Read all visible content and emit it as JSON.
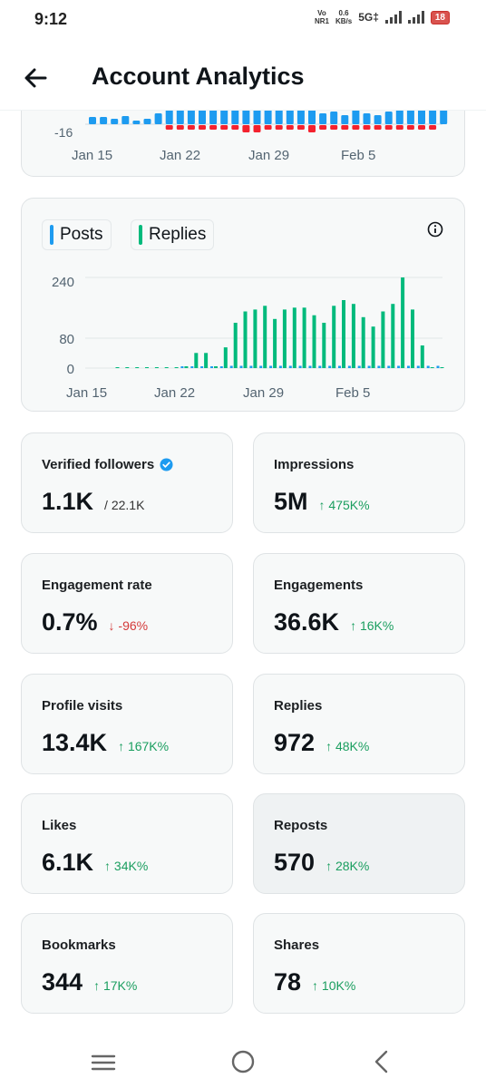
{
  "status_bar": {
    "time": "9:12",
    "volte": "Vo",
    "volte_sub": "NR1",
    "speed_value": "0.6",
    "speed_unit": "KB/s",
    "network": "5G‡",
    "battery": "18"
  },
  "header": {
    "title": "Account Analytics",
    "back_icon": "arrow-left-icon"
  },
  "top_chart": {
    "y_tick": "-16",
    "x_ticks": [
      "Jan 15",
      "Jan 22",
      "Jan 29",
      "Feb 5"
    ],
    "colors": {
      "blue": "#1d9bf0",
      "red": "#f4212e"
    }
  },
  "posts_replies_chart": {
    "legend": {
      "posts": "Posts",
      "replies": "Replies"
    },
    "colors": {
      "posts": "#1d9bf0",
      "replies": "#00ba7c"
    },
    "info_icon": "info-icon",
    "chart_data": {
      "type": "bar",
      "y_ticks": [
        "240",
        "80",
        "0"
      ],
      "x_ticks": [
        "Jan 15",
        "Jan 22",
        "Jan 29",
        "Feb 5"
      ],
      "ylim": [
        0,
        260
      ],
      "series": [
        {
          "name": "Posts",
          "values": [
            0,
            0,
            0,
            0,
            0,
            0,
            0,
            4,
            4,
            4,
            4,
            4,
            6,
            6,
            6,
            6,
            6,
            6,
            6,
            6,
            6,
            6,
            6,
            6,
            6,
            6,
            6,
            6,
            6,
            6,
            6,
            6,
            6,
            6
          ]
        },
        {
          "name": "Replies",
          "values": [
            0,
            0,
            0,
            0,
            0,
            0,
            0,
            4,
            40,
            40,
            4,
            55,
            120,
            150,
            155,
            165,
            130,
            155,
            160,
            160,
            140,
            120,
            165,
            180,
            170,
            135,
            110,
            150,
            170,
            240,
            155,
            60,
            0,
            0
          ]
        }
      ]
    }
  },
  "stats": [
    {
      "label": "Verified followers",
      "value": "1.1K",
      "sub": "/ 22.1K",
      "verified_icon": "verified-badge-icon"
    },
    {
      "label": "Impressions",
      "value": "5M",
      "change": "↑ 475K%",
      "direction": "up"
    },
    {
      "label": "Engagement rate",
      "value": "0.7%",
      "change": "↓ -96%",
      "direction": "down"
    },
    {
      "label": "Engagements",
      "value": "36.6K",
      "change": "↑ 16K%",
      "direction": "up"
    },
    {
      "label": "Profile visits",
      "value": "13.4K",
      "change": "↑ 167K%",
      "direction": "up"
    },
    {
      "label": "Replies",
      "value": "972",
      "change": "↑ 48K%",
      "direction": "up"
    },
    {
      "label": "Likes",
      "value": "6.1K",
      "change": "↑ 34K%",
      "direction": "up"
    },
    {
      "label": "Reposts",
      "value": "570",
      "change": "↑ 28K%",
      "direction": "up"
    },
    {
      "label": "Bookmarks",
      "value": "344",
      "change": "↑ 17K%",
      "direction": "up"
    },
    {
      "label": "Shares",
      "value": "78",
      "change": "↑ 10K%",
      "direction": "up"
    }
  ],
  "nav_bar": {
    "recents_icon": "menu-lines-icon",
    "home_icon": "home-circle-icon",
    "back_icon": "chevron-left-icon"
  }
}
